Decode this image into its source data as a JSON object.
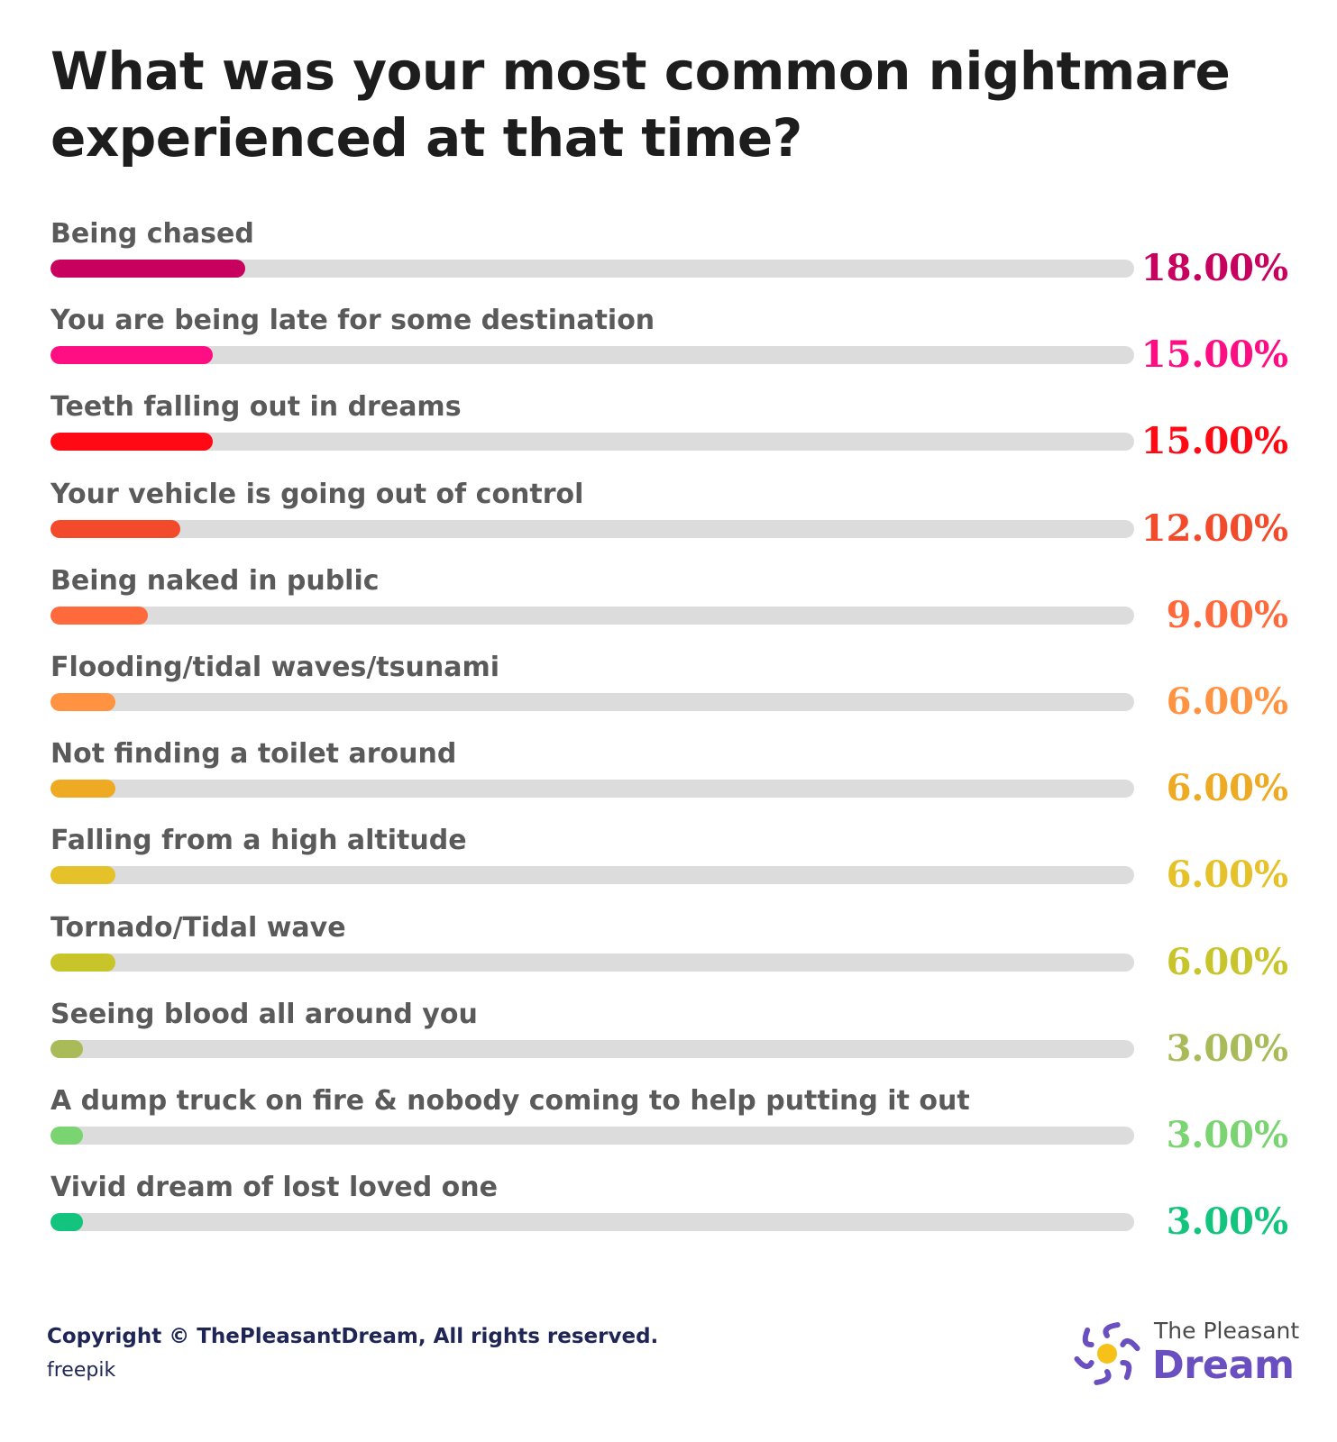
{
  "chart_data": {
    "type": "bar",
    "orientation": "horizontal",
    "title": "What was your most common nightmare experienced at that time?",
    "xlim": [
      0,
      100
    ],
    "grid": false,
    "legend": "none",
    "categories": [
      "Being chased",
      "You are being late for some destination",
      "Teeth falling out in dreams",
      "Your vehicle is going out of control",
      "Being naked in public",
      "Flooding/tidal waves/tsunami",
      "Not finding a toilet around",
      "Falling from a high altitude",
      "Tornado/Tidal wave",
      "Seeing blood all around you",
      "A dump truck on fire & nobody coming to help putting it out",
      "Vivid dream of lost loved one"
    ],
    "values": [
      18,
      15,
      15,
      12,
      9,
      6,
      6,
      6,
      6,
      3,
      3,
      3
    ],
    "value_labels": [
      "18.00%",
      "15.00%",
      "15.00%",
      "12.00%",
      "9.00%",
      "6.00%",
      "6.00%",
      "6.00%",
      "6.00%",
      "3.00%",
      "3.00%",
      "3.00%"
    ],
    "colors": [
      "#c8005e",
      "#ff0d82",
      "#ff0a14",
      "#f24a2b",
      "#ff6a3d",
      "#ff9341",
      "#efaa23",
      "#e5c22a",
      "#c7c52a",
      "#a9bb59",
      "#7ad472",
      "#13c47e"
    ],
    "track_color": "#dcdcdc"
  },
  "footer": {
    "copyright": "Copyright © ThePleasantDream, All rights reserved.",
    "credit": "freepik"
  },
  "logo": {
    "line1": "The Pleasant",
    "line2": "Dream",
    "colors": {
      "rays": "#6a4fc0",
      "sun": "#f6c21a"
    }
  }
}
